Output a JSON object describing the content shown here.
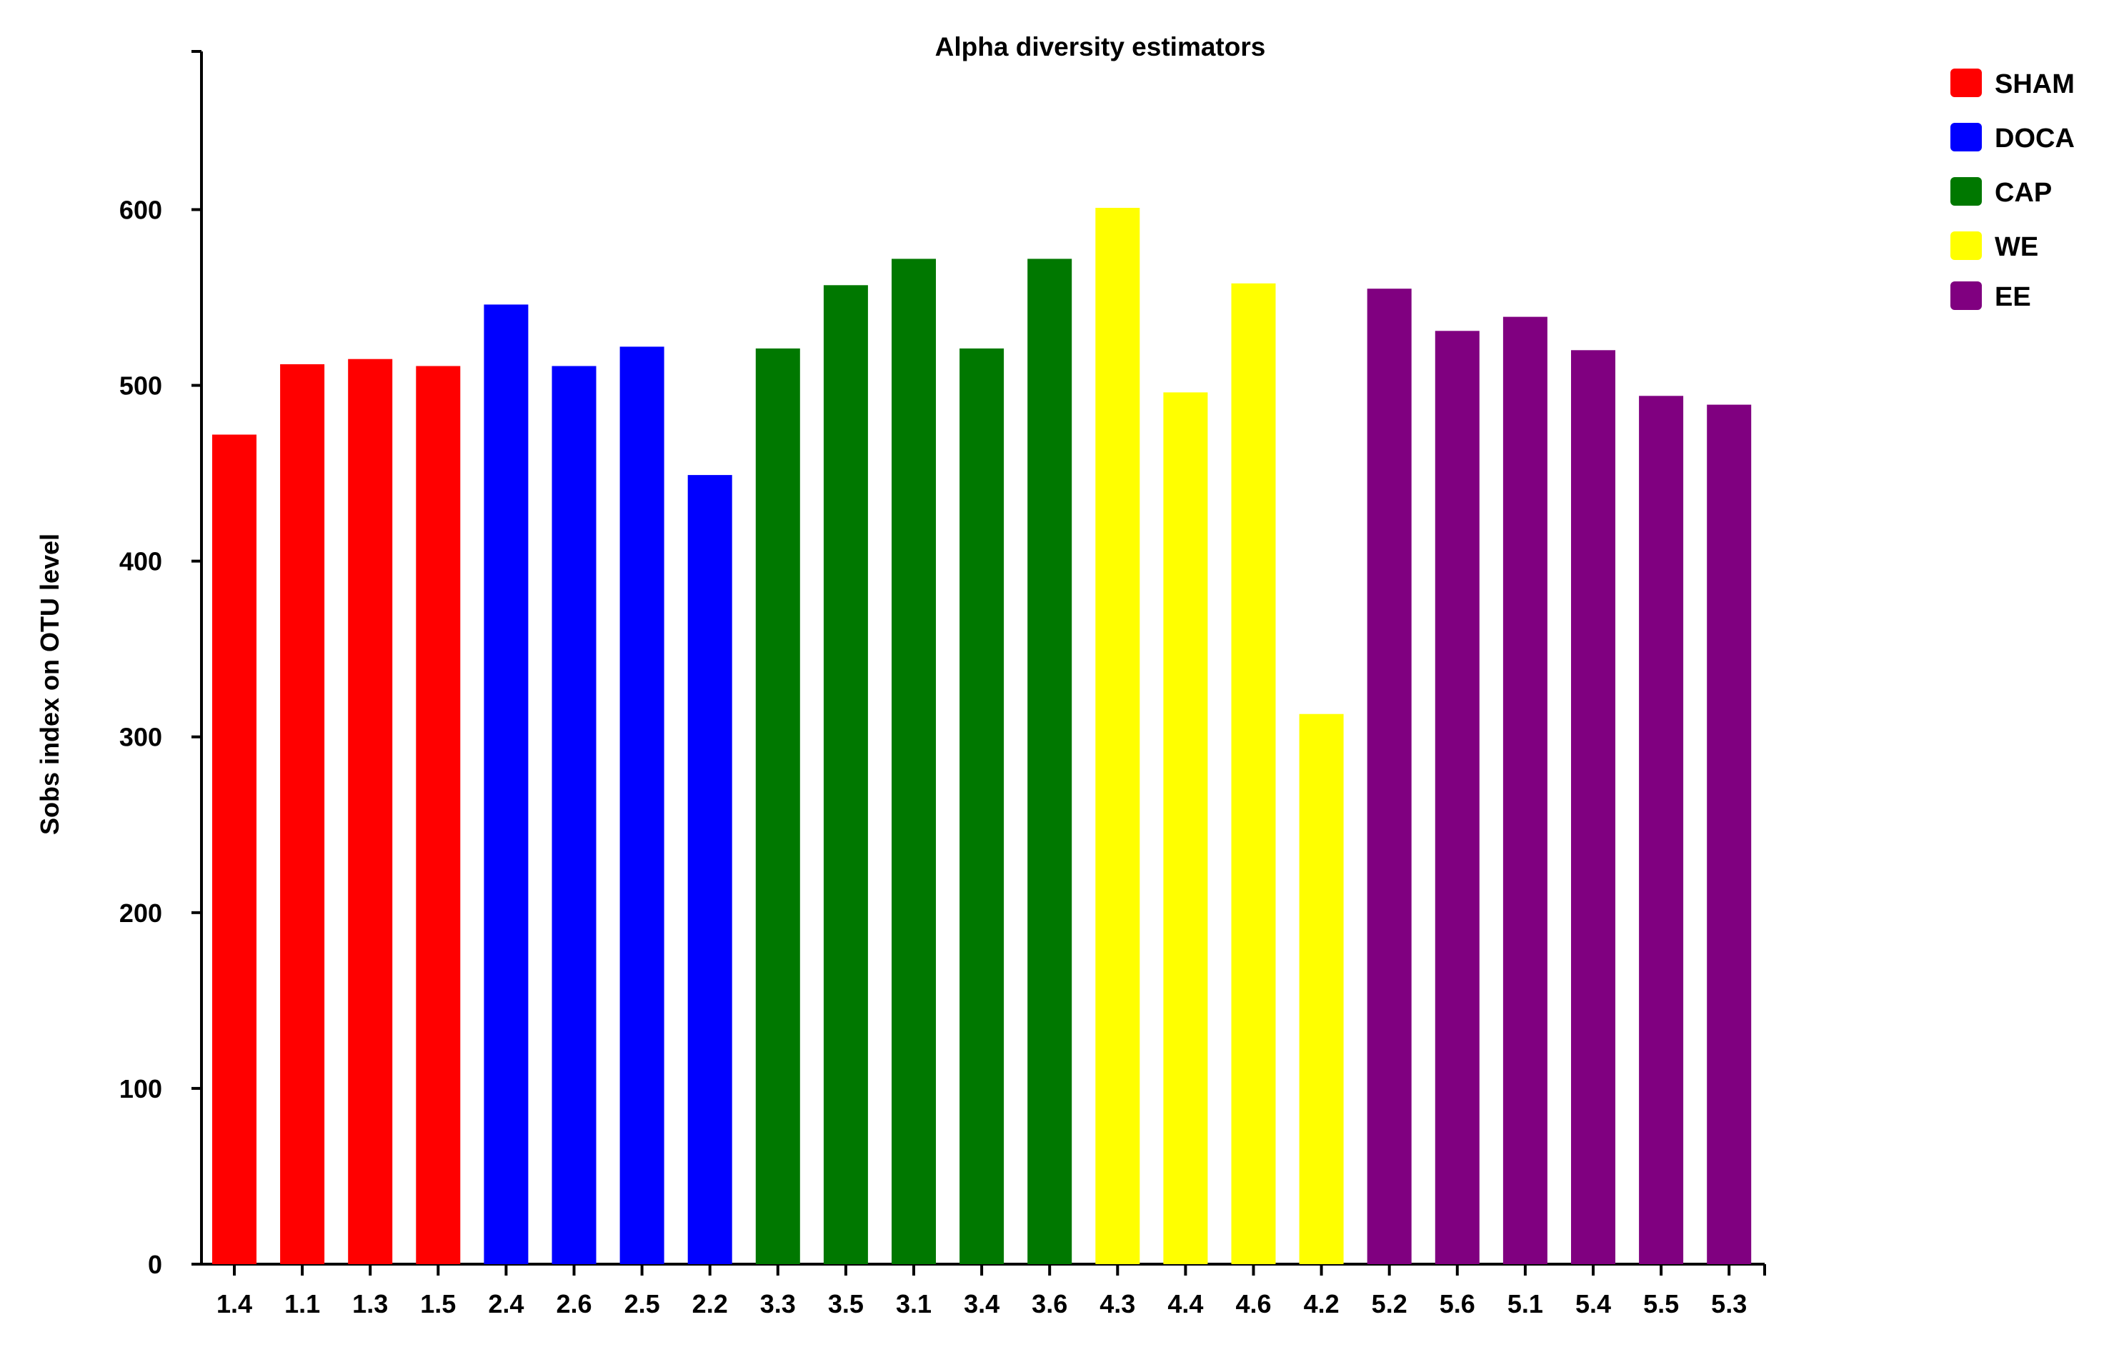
{
  "chart_data": {
    "type": "bar",
    "title": "Alpha diversity estimators",
    "xlabel": "",
    "ylabel": "Sobs index on OTU level",
    "ylim": [
      0,
      690
    ],
    "yticks": [
      0,
      100,
      200,
      300,
      400,
      500,
      600
    ],
    "grid": false,
    "legend_position": "top-right",
    "groups": [
      {
        "name": "SHAM",
        "color": "#ff0000"
      },
      {
        "name": "DOCA",
        "color": "#0000ff"
      },
      {
        "name": "CAP",
        "color": "#007800"
      },
      {
        "name": "WE",
        "color": "#ffff00"
      },
      {
        "name": "EE",
        "color": "#800080"
      }
    ],
    "categories": [
      "1.4",
      "1.1",
      "1.3",
      "1.5",
      "2.4",
      "2.6",
      "2.5",
      "2.2",
      "3.3",
      "3.5",
      "3.1",
      "3.4",
      "3.6",
      "4.3",
      "4.4",
      "4.6",
      "4.2",
      "5.2",
      "5.6",
      "5.1",
      "5.4",
      "5.5",
      "5.3"
    ],
    "values": [
      472,
      512,
      515,
      511,
      546,
      511,
      522,
      449,
      521,
      557,
      572,
      521,
      572,
      601,
      496,
      558,
      313,
      555,
      531,
      539,
      520,
      494,
      489
    ],
    "bar_groups": [
      "SHAM",
      "SHAM",
      "SHAM",
      "SHAM",
      "DOCA",
      "DOCA",
      "DOCA",
      "DOCA",
      "CAP",
      "CAP",
      "CAP",
      "CAP",
      "CAP",
      "WE",
      "WE",
      "WE",
      "WE",
      "EE",
      "EE",
      "EE",
      "EE",
      "EE",
      "EE"
    ]
  }
}
